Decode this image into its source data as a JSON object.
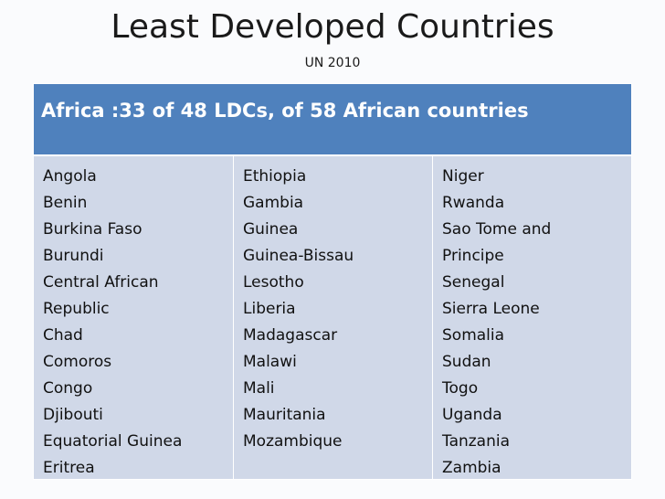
{
  "slide": {
    "title": "Least Developed Countries",
    "subtitle": "UN  2010"
  },
  "table": {
    "header": "Africa :33 of 48 LDCs, of 58 African countries",
    "columns": [
      [
        "Angola",
        "Benin",
        "Burkina Faso",
        "Burundi",
        "Central African",
        "Republic",
        "Chad",
        "Comoros",
        "Congo",
        "Djibouti",
        "Equatorial Guinea",
        "Eritrea"
      ],
      [
        "Ethiopia",
        "Gambia",
        "Guinea",
        "Guinea-Bissau",
        "Lesotho",
        "Liberia",
        "Madagascar",
        "Malawi",
        "Mali",
        "Mauritania",
        "Mozambique"
      ],
      [
        "Niger",
        "Rwanda",
        "Sao Tome and",
        "Principe",
        "Senegal",
        "Sierra Leone",
        "Somalia",
        "Sudan",
        "Togo",
        "Uganda",
        "Tanzania",
        "Zambia"
      ]
    ]
  },
  "colors": {
    "header_bg": "#4f81bd",
    "cell_bg": "#d0d8e8",
    "header_text": "#ffffff"
  }
}
